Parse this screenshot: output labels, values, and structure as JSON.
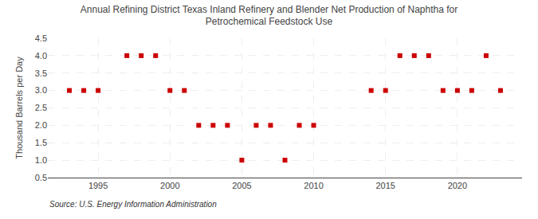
{
  "chart_data": {
    "type": "scatter",
    "title": "Annual Refining District Texas Inland Refinery and Blender Net Production of Naphtha for\nPetrochemical Feedstock Use",
    "ylabel": "Thousand Barrels per Day",
    "annotations": [
      "Source: U.S. Energy Information Administration"
    ],
    "x": [
      1993,
      1994,
      1995,
      1997,
      1998,
      1999,
      2000,
      2001,
      2002,
      2003,
      2004,
      2005,
      2006,
      2007,
      2008,
      2009,
      2010,
      2014,
      2015,
      2016,
      2017,
      2018,
      2019,
      2020,
      2021,
      2022,
      2023
    ],
    "values": [
      3,
      3,
      3,
      4,
      4,
      4,
      3,
      3,
      2,
      2,
      2,
      1,
      2,
      2,
      1,
      2,
      2,
      3,
      3,
      4,
      4,
      4,
      3,
      3,
      3,
      4,
      3
    ],
    "color": "#cc0000",
    "marker": "square",
    "grid": true,
    "xlim": [
      1991.5,
      2024.5
    ],
    "xticks": [
      1995,
      2000,
      2005,
      2010,
      2015,
      2020
    ],
    "ylim": [
      0.5,
      4.5
    ],
    "yticks": [
      0.5,
      {
        "value": 1.0,
        "label": "1.0"
      },
      1.5,
      {
        "value": 2.0,
        "label": "2.0"
      },
      2.5,
      {
        "value": 3.0,
        "label": "3.0"
      },
      3.5,
      {
        "value": 4.0,
        "label": "4.0"
      },
      4.5
    ]
  }
}
